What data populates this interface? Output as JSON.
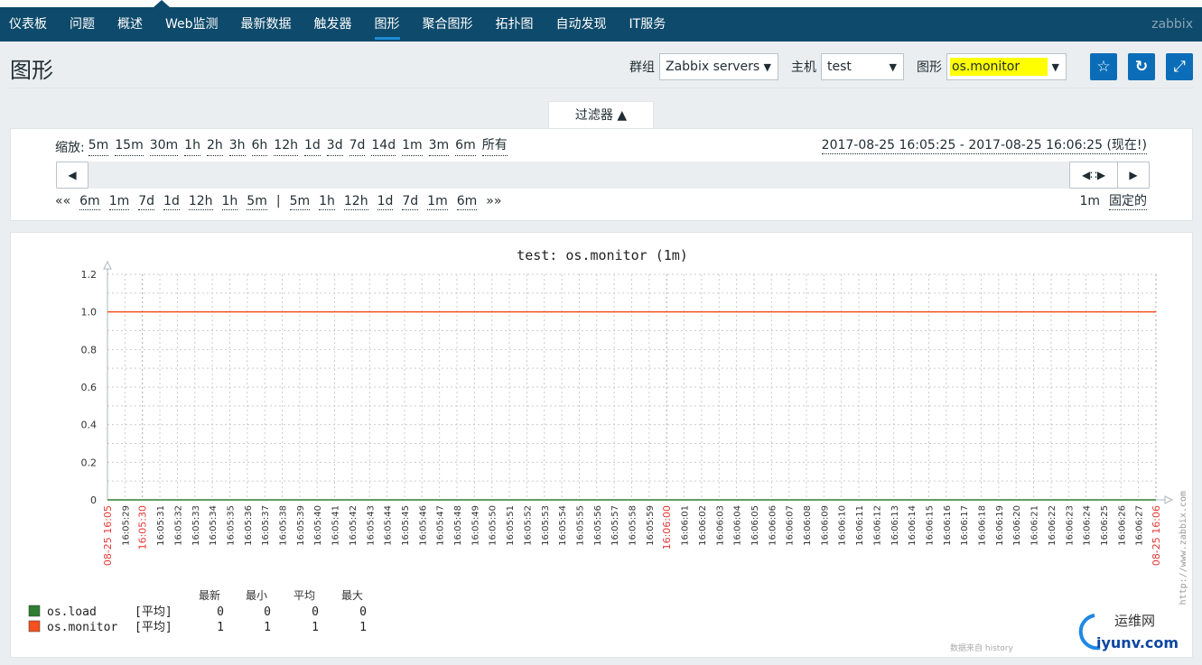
{
  "nav": {
    "items": [
      "仪表板",
      "问题",
      "概述",
      "Web监测",
      "最新数据",
      "触发器",
      "图形",
      "聚合图形",
      "拓扑图",
      "自动发现",
      "IT服务"
    ],
    "active": 6,
    "brand": "zabbix"
  },
  "header": {
    "title": "图形",
    "group_label": "群组",
    "group_value": "Zabbix servers",
    "host_label": "主机",
    "host_value": "test",
    "graph_label": "图形",
    "graph_value": "os.monitor",
    "icons": [
      "star-icon",
      "refresh-icon",
      "fullscreen-icon"
    ]
  },
  "filter": {
    "tab_label": "过滤器 ▲",
    "zoom_label": "缩放:",
    "zoom_options": [
      "5m",
      "15m",
      "30m",
      "1h",
      "2h",
      "3h",
      "6h",
      "12h",
      "1d",
      "3d",
      "7d",
      "14d",
      "1m",
      "3m",
      "6m",
      "所有"
    ],
    "period": "2017-08-25 16:05:25 - 2017-08-25 16:06:25 (现在!)",
    "back_all": "««",
    "back": [
      "6m",
      "1m",
      "7d",
      "1d",
      "12h",
      "1h",
      "5m"
    ],
    "sep": "|",
    "forward": [
      "5m",
      "1h",
      "12h",
      "1d",
      "7d",
      "1m",
      "6m"
    ],
    "fwd_all": "»»",
    "duration": "1m",
    "fixed_label": "固定的"
  },
  "chart_data": {
    "type": "line",
    "title": "test: os.monitor (1m)",
    "ylim": [
      0,
      1.2
    ],
    "y_ticks": [
      "0",
      "0.2",
      "0.4",
      "0.6",
      "0.8",
      "1.0",
      "1.2"
    ],
    "grid": true,
    "x_ticks": [
      "08-25 16:05",
      "16:05:29",
      "16:05:30",
      "16:05:31",
      "16:05:32",
      "16:05:33",
      "16:05:34",
      "16:05:35",
      "16:05:36",
      "16:05:37",
      "16:05:38",
      "16:05:39",
      "16:05:40",
      "16:05:41",
      "16:05:42",
      "16:05:43",
      "16:05:44",
      "16:05:45",
      "16:05:46",
      "16:05:47",
      "16:05:48",
      "16:05:49",
      "16:05:50",
      "16:05:51",
      "16:05:52",
      "16:05:53",
      "16:05:54",
      "16:05:55",
      "16:05:56",
      "16:05:57",
      "16:05:58",
      "16:05:59",
      "16:06:00",
      "16:06:01",
      "16:06:02",
      "16:06:03",
      "16:06:04",
      "16:06:05",
      "16:06:06",
      "16:06:07",
      "16:06:08",
      "16:06:09",
      "16:06:10",
      "16:06:11",
      "16:06:12",
      "16:06:13",
      "16:06:14",
      "16:06:15",
      "16:06:16",
      "16:06:17",
      "16:06:18",
      "16:06:19",
      "16:06:20",
      "16:06:21",
      "16:06:22",
      "16:06:23",
      "16:06:24",
      "16:06:25",
      "16:06:26",
      "16:06:27",
      "08-25 16:06"
    ],
    "highlight_ticks": [
      "08-25 16:05",
      "16:05:30",
      "16:06:00",
      "08-25 16:06"
    ],
    "highlight_color": "#e53935",
    "series": [
      {
        "name": "os.load",
        "color": "#2e7d32",
        "value": 0,
        "func": "[平均]",
        "last": "0",
        "min": "0",
        "avg": "0",
        "max": "0"
      },
      {
        "name": "os.monitor",
        "color": "#f4511e",
        "value": 1,
        "func": "[平均]",
        "last": "1",
        "min": "1",
        "avg": "1",
        "max": "1"
      }
    ],
    "legend_headers": [
      "最新",
      "最小",
      "平均",
      "最大"
    ],
    "side_text": "http://www.zabbix.com",
    "footer_text": "数据来自 history"
  },
  "watermark": {
    "cn": "运维网",
    "en": "iyunv.com"
  }
}
